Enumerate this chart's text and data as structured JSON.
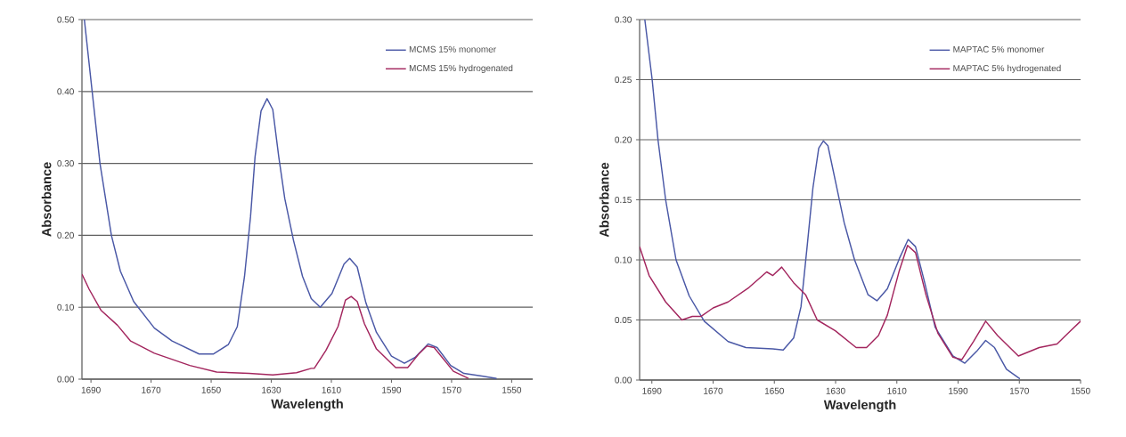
{
  "chart_data": [
    {
      "type": "line",
      "xlabel": "Wavelength",
      "ylabel": "Absorbance",
      "xlim": [
        1693,
        1543
      ],
      "ylim": [
        0,
        0.5
      ],
      "xticks": [
        1690,
        1670,
        1650,
        1630,
        1610,
        1590,
        1570,
        1550
      ],
      "yticks": [
        {
          "value": 0,
          "label": "0.00"
        },
        {
          "value": 0.1,
          "label": "0.10"
        },
        {
          "value": 0.2,
          "label": "0.20"
        },
        {
          "value": 0.3,
          "label": "0.30"
        },
        {
          "value": 0.4,
          "label": "0.40"
        },
        {
          "value": 0.5,
          "label": "0.50"
        }
      ],
      "grid": "y",
      "legend": "top right",
      "marker": "none",
      "line_style": "solid",
      "series": [
        {
          "name": "MCMS 15% monomer",
          "color": "#4a58a6",
          "x": [
            1692.2,
            1689.6,
            1687,
            1683.2,
            1680.2,
            1675.8,
            1668.9,
            1663,
            1654,
            1649.2,
            1644.3,
            1641.3,
            1638.9,
            1636.9,
            1635.4,
            1633.4,
            1631.4,
            1629.5,
            1627.5,
            1625.5,
            1622.6,
            1619.6,
            1616.7,
            1613.7,
            1609.8,
            1605.8,
            1603.9,
            1601.4,
            1598.5,
            1595,
            1590,
            1585.7,
            1582.2,
            1577.8,
            1574.8,
            1570.3,
            1565.9,
            1559.5,
            1555
          ],
          "values": [
            0.5,
            0.4,
            0.3,
            0.2,
            0.15,
            0.108,
            0.071,
            0.053,
            0.035,
            0.035,
            0.048,
            0.073,
            0.143,
            0.226,
            0.309,
            0.373,
            0.39,
            0.375,
            0.309,
            0.251,
            0.193,
            0.143,
            0.112,
            0.1,
            0.119,
            0.16,
            0.168,
            0.156,
            0.106,
            0.065,
            0.032,
            0.022,
            0.03,
            0.049,
            0.044,
            0.019,
            0.008,
            0.004,
            0.001
          ]
        },
        {
          "name": "MCMS 15% hydrogenated",
          "color": "#a3265e",
          "x": [
            1693,
            1690.6,
            1686.7,
            1681.2,
            1676.8,
            1668.9,
            1657.1,
            1648.2,
            1637.4,
            1629.5,
            1621.6,
            1616.7,
            1615.7,
            1611.8,
            1607.8,
            1605.3,
            1603.4,
            1601.4,
            1599,
            1595,
            1588.6,
            1584.6,
            1580.7,
            1578.2,
            1575.8,
            1569.4,
            1564.4
          ],
          "values": [
            0.146,
            0.125,
            0.096,
            0.075,
            0.053,
            0.036,
            0.019,
            0.01,
            0.008,
            0.006,
            0.009,
            0.015,
            0.015,
            0.04,
            0.073,
            0.11,
            0.115,
            0.108,
            0.077,
            0.042,
            0.016,
            0.016,
            0.036,
            0.046,
            0.044,
            0.011,
            0.001
          ]
        }
      ]
    },
    {
      "type": "line",
      "xlabel": "Wavelength",
      "ylabel": "Absorbance",
      "xlim": [
        1694,
        1550
      ],
      "ylim": [
        0,
        0.3
      ],
      "xticks": [
        1690,
        1670,
        1650,
        1630,
        1610,
        1590,
        1570,
        1550
      ],
      "yticks": [
        {
          "value": 0,
          "label": "0.00"
        },
        {
          "value": 0.05,
          "label": "0.05"
        },
        {
          "value": 0.1,
          "label": "0.10"
        },
        {
          "value": 0.15,
          "label": "0.15"
        },
        {
          "value": 0.2,
          "label": "0.20"
        },
        {
          "value": 0.25,
          "label": "0.25"
        },
        {
          "value": 0.3,
          "label": "0.30"
        }
      ],
      "grid": "y",
      "legend": "top right",
      "marker": "none",
      "line_style": "solid",
      "series": [
        {
          "name": "MAPTAC 5% monomer",
          "color": "#4a58a6",
          "x": [
            1692.3,
            1689.9,
            1688,
            1685.5,
            1682.1,
            1677.8,
            1672.9,
            1665.1,
            1659.3,
            1650.5,
            1647.1,
            1643.7,
            1641.3,
            1639.3,
            1637.4,
            1635.5,
            1634,
            1632.5,
            1630.1,
            1627.2,
            1623.8,
            1619.4,
            1616.5,
            1613.1,
            1609.2,
            1606.3,
            1603.9,
            1600.9,
            1597.5,
            1591.7,
            1587.8,
            1583.9,
            1581,
            1578.1,
            1574.2,
            1569.8
          ],
          "values": [
            0.3,
            0.25,
            0.2,
            0.15,
            0.1,
            0.07,
            0.049,
            0.032,
            0.027,
            0.026,
            0.025,
            0.035,
            0.061,
            0.111,
            0.16,
            0.193,
            0.199,
            0.195,
            0.166,
            0.131,
            0.1,
            0.071,
            0.066,
            0.076,
            0.101,
            0.117,
            0.111,
            0.081,
            0.044,
            0.02,
            0.014,
            0.024,
            0.033,
            0.027,
            0.009,
            0.001
          ]
        },
        {
          "name": "MAPTAC 5% hydrogenated",
          "color": "#a3265e",
          "x": [
            1694,
            1690.9,
            1685.5,
            1680.2,
            1676.8,
            1673.9,
            1670,
            1665.1,
            1658.3,
            1652.5,
            1650.5,
            1647.6,
            1643.7,
            1639.8,
            1636,
            1630.1,
            1623.3,
            1619.9,
            1616,
            1613.1,
            1609.2,
            1606.5,
            1603.9,
            1600.5,
            1596.6,
            1591.7,
            1588.8,
            1585,
            1581,
            1577.1,
            1570.3,
            1563.5,
            1557.7,
            1553.3,
            1550
          ],
          "values": [
            0.111,
            0.087,
            0.065,
            0.05,
            0.053,
            0.053,
            0.06,
            0.065,
            0.077,
            0.09,
            0.087,
            0.094,
            0.081,
            0.071,
            0.05,
            0.041,
            0.027,
            0.027,
            0.037,
            0.054,
            0.091,
            0.112,
            0.106,
            0.071,
            0.039,
            0.019,
            0.017,
            0.032,
            0.049,
            0.037,
            0.02,
            0.027,
            0.03,
            0.041,
            0.049
          ]
        }
      ]
    }
  ]
}
